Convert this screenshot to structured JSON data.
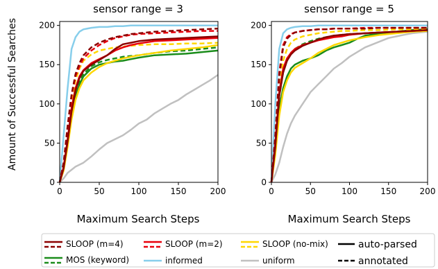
{
  "figure": {
    "ylabel": "Amount of Successful Searches"
  },
  "colors": {
    "sloop_m4": "#8b0000",
    "sloop_m2": "#e8000b",
    "sloop_nomix": "#ffd700",
    "mos_keyword": "#1a8c1a",
    "informed": "#87ceeb",
    "uniform": "#c0c0c0"
  },
  "legend": {
    "items": [
      {
        "key": "sloop_m4",
        "label": "SLOOP (m=4)",
        "icon": "dual-line-swatch-icon"
      },
      {
        "key": "sloop_m2",
        "label": "SLOOP (m=2)",
        "icon": "dual-line-swatch-icon"
      },
      {
        "key": "sloop_nomix",
        "label": "SLOOP (no-mix)",
        "icon": "dual-line-swatch-icon"
      },
      {
        "key": "mos_keyword",
        "label": "MOS (keyword)",
        "icon": "dual-line-swatch-icon"
      },
      {
        "key": "informed",
        "label": "informed",
        "icon": "line-swatch-icon"
      },
      {
        "key": "uniform",
        "label": "uniform",
        "icon": "line-swatch-icon"
      }
    ],
    "styles": [
      {
        "style": "solid",
        "label": "auto-parsed"
      },
      {
        "style": "dashed",
        "label": "annotated"
      }
    ]
  },
  "chart_data": [
    {
      "type": "line",
      "title": "sensor range = 3",
      "xlabel": "Maximum Search Steps",
      "ylabel": "Amount of Successful Searches",
      "xlim": [
        0,
        200
      ],
      "ylim": [
        0,
        205
      ],
      "xticks": [
        0,
        50,
        100,
        150,
        200
      ],
      "yticks": [
        0,
        50,
        100,
        150,
        200
      ],
      "grid": false,
      "series": [
        {
          "key": "uniform",
          "style": "solid",
          "x": [
            0,
            5,
            10,
            20,
            30,
            40,
            50,
            60,
            70,
            80,
            90,
            100,
            110,
            120,
            130,
            140,
            150,
            160,
            170,
            180,
            190,
            200
          ],
          "y": [
            0,
            5,
            12,
            20,
            25,
            33,
            42,
            50,
            55,
            60,
            67,
            75,
            80,
            88,
            94,
            100,
            105,
            112,
            118,
            124,
            130,
            137
          ]
        },
        {
          "key": "informed",
          "style": "solid",
          "x": [
            0,
            5,
            10,
            15,
            20,
            25,
            30,
            40,
            50,
            60,
            70,
            80,
            90,
            100,
            120,
            140,
            160,
            180,
            200
          ],
          "y": [
            0,
            60,
            120,
            170,
            185,
            192,
            195,
            197,
            198,
            198,
            199,
            199,
            200,
            200,
            200,
            200,
            200,
            200,
            200
          ]
        },
        {
          "key": "mos_keyword",
          "style": "solid",
          "x": [
            0,
            5,
            10,
            15,
            20,
            25,
            30,
            40,
            50,
            60,
            70,
            80,
            90,
            100,
            120,
            140,
            160,
            180,
            200
          ],
          "y": [
            0,
            18,
            50,
            85,
            110,
            125,
            135,
            145,
            150,
            152,
            154,
            155,
            157,
            159,
            162,
            163,
            164,
            166,
            168
          ]
        },
        {
          "key": "mos_keyword",
          "style": "dashed",
          "x": [
            0,
            5,
            10,
            15,
            20,
            25,
            30,
            40,
            50,
            60,
            70,
            80,
            90,
            100,
            120,
            140,
            160,
            180,
            200
          ],
          "y": [
            0,
            20,
            55,
            90,
            115,
            128,
            138,
            148,
            153,
            156,
            158,
            160,
            161,
            162,
            165,
            167,
            168,
            170,
            172
          ]
        },
        {
          "key": "sloop_nomix",
          "style": "solid",
          "x": [
            0,
            5,
            10,
            15,
            20,
            25,
            30,
            40,
            50,
            60,
            70,
            80,
            90,
            100,
            120,
            140,
            160,
            180,
            200
          ],
          "y": [
            0,
            15,
            45,
            80,
            105,
            120,
            130,
            140,
            147,
            152,
            155,
            158,
            160,
            162,
            165,
            168,
            170,
            172,
            175
          ]
        },
        {
          "key": "sloop_nomix",
          "style": "dashed",
          "x": [
            0,
            5,
            10,
            15,
            20,
            25,
            30,
            40,
            50,
            60,
            70,
            80,
            90,
            100,
            120,
            140,
            160,
            180,
            200
          ],
          "y": [
            0,
            22,
            60,
            100,
            130,
            145,
            155,
            163,
            168,
            170,
            172,
            173,
            174,
            175,
            176,
            176,
            177,
            177,
            178
          ]
        },
        {
          "key": "sloop_m2",
          "style": "solid",
          "x": [
            0,
            5,
            10,
            15,
            20,
            25,
            30,
            40,
            50,
            60,
            70,
            80,
            90,
            100,
            120,
            140,
            160,
            180,
            200
          ],
          "y": [
            0,
            20,
            55,
            95,
            120,
            135,
            143,
            152,
            157,
            162,
            168,
            172,
            175,
            177,
            180,
            181,
            182,
            183,
            184
          ]
        },
        {
          "key": "sloop_m2",
          "style": "dashed",
          "x": [
            0,
            5,
            10,
            15,
            20,
            25,
            30,
            40,
            50,
            60,
            70,
            80,
            90,
            100,
            120,
            140,
            160,
            180,
            200
          ],
          "y": [
            0,
            25,
            70,
            110,
            135,
            148,
            158,
            168,
            175,
            180,
            184,
            186,
            188,
            189,
            190,
            191,
            192,
            193,
            193
          ]
        },
        {
          "key": "sloop_m4",
          "style": "solid",
          "x": [
            0,
            5,
            10,
            15,
            20,
            25,
            30,
            40,
            50,
            60,
            70,
            80,
            90,
            100,
            120,
            140,
            160,
            180,
            200
          ],
          "y": [
            0,
            18,
            52,
            90,
            117,
            133,
            142,
            150,
            156,
            162,
            170,
            176,
            178,
            180,
            182,
            183,
            184,
            185,
            186
          ]
        },
        {
          "key": "sloop_m4",
          "style": "dashed",
          "x": [
            0,
            5,
            10,
            15,
            20,
            25,
            30,
            40,
            50,
            60,
            70,
            80,
            90,
            100,
            120,
            140,
            160,
            180,
            200
          ],
          "y": [
            0,
            25,
            72,
            112,
            138,
            152,
            162,
            172,
            178,
            182,
            185,
            187,
            189,
            190,
            192,
            193,
            194,
            195,
            196
          ]
        }
      ]
    },
    {
      "type": "line",
      "title": "sensor range = 5",
      "xlabel": "Maximum Search Steps",
      "ylabel": "",
      "xlim": [
        0,
        200
      ],
      "ylim": [
        0,
        205
      ],
      "xticks": [
        0,
        50,
        100,
        150,
        200
      ],
      "yticks": [
        0,
        50,
        100,
        150,
        200
      ],
      "grid": false,
      "series": [
        {
          "key": "uniform",
          "style": "solid",
          "x": [
            0,
            5,
            10,
            15,
            20,
            25,
            30,
            40,
            50,
            60,
            70,
            80,
            90,
            100,
            110,
            120,
            130,
            140,
            150,
            160,
            170,
            180,
            190,
            200
          ],
          "y": [
            0,
            10,
            25,
            45,
            62,
            75,
            85,
            100,
            115,
            125,
            135,
            145,
            152,
            160,
            166,
            172,
            176,
            180,
            184,
            186,
            188,
            190,
            191,
            192
          ]
        },
        {
          "key": "informed",
          "style": "solid",
          "x": [
            0,
            5,
            10,
            15,
            20,
            25,
            30,
            40,
            50,
            60,
            80,
            100,
            120,
            140,
            160,
            180,
            200
          ],
          "y": [
            0,
            100,
            170,
            190,
            195,
            197,
            198,
            199,
            199,
            200,
            200,
            200,
            200,
            200,
            200,
            200,
            200
          ]
        },
        {
          "key": "mos_keyword",
          "style": "solid",
          "x": [
            0,
            5,
            10,
            15,
            20,
            25,
            30,
            40,
            50,
            60,
            70,
            80,
            90,
            100,
            110,
            120,
            140,
            160,
            180,
            200
          ],
          "y": [
            0,
            40,
            95,
            120,
            135,
            145,
            150,
            155,
            158,
            162,
            168,
            172,
            175,
            178,
            183,
            187,
            190,
            192,
            194,
            195
          ]
        },
        {
          "key": "mos_keyword",
          "style": "dashed",
          "x": [
            0,
            5,
            10,
            15,
            20,
            25,
            30,
            40,
            50,
            60,
            70,
            80,
            90,
            100,
            120,
            140,
            160,
            180,
            200
          ],
          "y": [
            0,
            45,
            110,
            140,
            155,
            165,
            170,
            176,
            180,
            183,
            185,
            187,
            188,
            189,
            190,
            191,
            192,
            193,
            194
          ]
        },
        {
          "key": "sloop_nomix",
          "style": "solid",
          "x": [
            0,
            5,
            10,
            15,
            20,
            25,
            30,
            40,
            50,
            60,
            70,
            80,
            90,
            100,
            120,
            140,
            160,
            180,
            200
          ],
          "y": [
            0,
            35,
            85,
            115,
            130,
            140,
            146,
            152,
            158,
            165,
            170,
            175,
            178,
            181,
            185,
            188,
            190,
            192,
            193
          ]
        },
        {
          "key": "sloop_nomix",
          "style": "dashed",
          "x": [
            0,
            5,
            10,
            15,
            20,
            25,
            30,
            40,
            50,
            60,
            70,
            80,
            90,
            100,
            120,
            140,
            160,
            180,
            200
          ],
          "y": [
            0,
            50,
            120,
            155,
            170,
            178,
            182,
            186,
            188,
            190,
            191,
            192,
            193,
            193,
            194,
            194,
            195,
            195,
            195
          ]
        },
        {
          "key": "sloop_m2",
          "style": "solid",
          "x": [
            0,
            5,
            10,
            15,
            20,
            25,
            30,
            40,
            50,
            60,
            70,
            80,
            90,
            100,
            120,
            140,
            160,
            180,
            200
          ],
          "y": [
            0,
            50,
            115,
            145,
            158,
            165,
            170,
            175,
            178,
            181,
            183,
            185,
            186,
            188,
            190,
            191,
            192,
            193,
            194
          ]
        },
        {
          "key": "sloop_m2",
          "style": "dashed",
          "x": [
            0,
            5,
            10,
            15,
            20,
            25,
            30,
            40,
            50,
            60,
            70,
            80,
            90,
            100,
            120,
            140,
            160,
            180,
            200
          ],
          "y": [
            0,
            60,
            140,
            175,
            185,
            189,
            191,
            193,
            194,
            195,
            195,
            196,
            196,
            196,
            197,
            197,
            197,
            197,
            197
          ]
        },
        {
          "key": "sloop_m4",
          "style": "solid",
          "x": [
            0,
            5,
            10,
            15,
            20,
            25,
            30,
            40,
            50,
            60,
            70,
            80,
            90,
            100,
            120,
            140,
            160,
            180,
            200
          ],
          "y": [
            0,
            45,
            110,
            140,
            155,
            163,
            168,
            174,
            178,
            182,
            185,
            187,
            188,
            189,
            190,
            191,
            192,
            193,
            194
          ]
        },
        {
          "key": "sloop_m4",
          "style": "dashed",
          "x": [
            0,
            5,
            10,
            15,
            20,
            25,
            30,
            40,
            50,
            60,
            70,
            80,
            90,
            100,
            120,
            140,
            160,
            180,
            200
          ],
          "y": [
            0,
            58,
            135,
            172,
            183,
            188,
            191,
            193,
            194,
            195,
            195,
            196,
            196,
            196,
            196,
            197,
            197,
            197,
            197
          ]
        }
      ]
    }
  ]
}
